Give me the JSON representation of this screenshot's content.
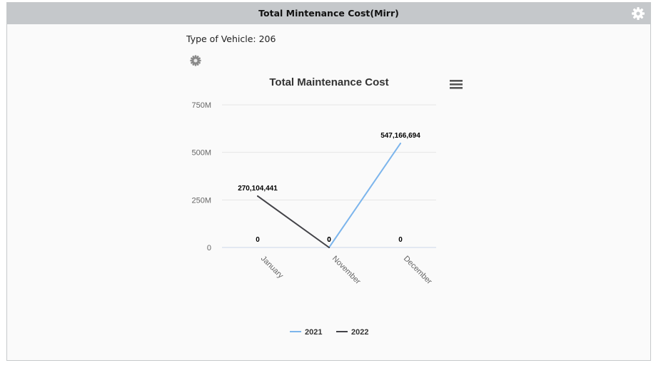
{
  "panel": {
    "title": "Total Mintenance Cost(Mirr)",
    "settings_icon": "gear-icon"
  },
  "filter": {
    "vehicle_label": "Type of Vehicle: 206",
    "settings_icon": "gear-icon"
  },
  "chart_menu_icon": "hamburger-menu-icon",
  "chart_data": {
    "type": "line",
    "title": "Total Maintenance Cost",
    "xlabel": "",
    "ylabel": "",
    "categories": [
      "January",
      "November",
      "December"
    ],
    "y_ticks": [
      0,
      250000000,
      500000000,
      750000000
    ],
    "y_tick_labels": [
      "0",
      "250M",
      "500M",
      "750M"
    ],
    "ylim": [
      0,
      750000000
    ],
    "grid": true,
    "legend_position": "bottom-center",
    "series": [
      {
        "name": "2021",
        "color": "#7cb5ec",
        "points": [
          {
            "category": "November",
            "value": 0,
            "label": "0"
          },
          {
            "category": "December",
            "value": 547166694,
            "label": "547,166,694"
          }
        ]
      },
      {
        "name": "2022",
        "color": "#434348",
        "points": [
          {
            "category": "January",
            "value": 270104441,
            "label": "270,104,441"
          },
          {
            "category": "November",
            "value": 0,
            "label": "0"
          }
        ]
      }
    ],
    "extra_labels": [
      {
        "category": "January",
        "value": 0,
        "label": "0"
      },
      {
        "category": "December",
        "value": 0,
        "label": "0"
      }
    ]
  }
}
